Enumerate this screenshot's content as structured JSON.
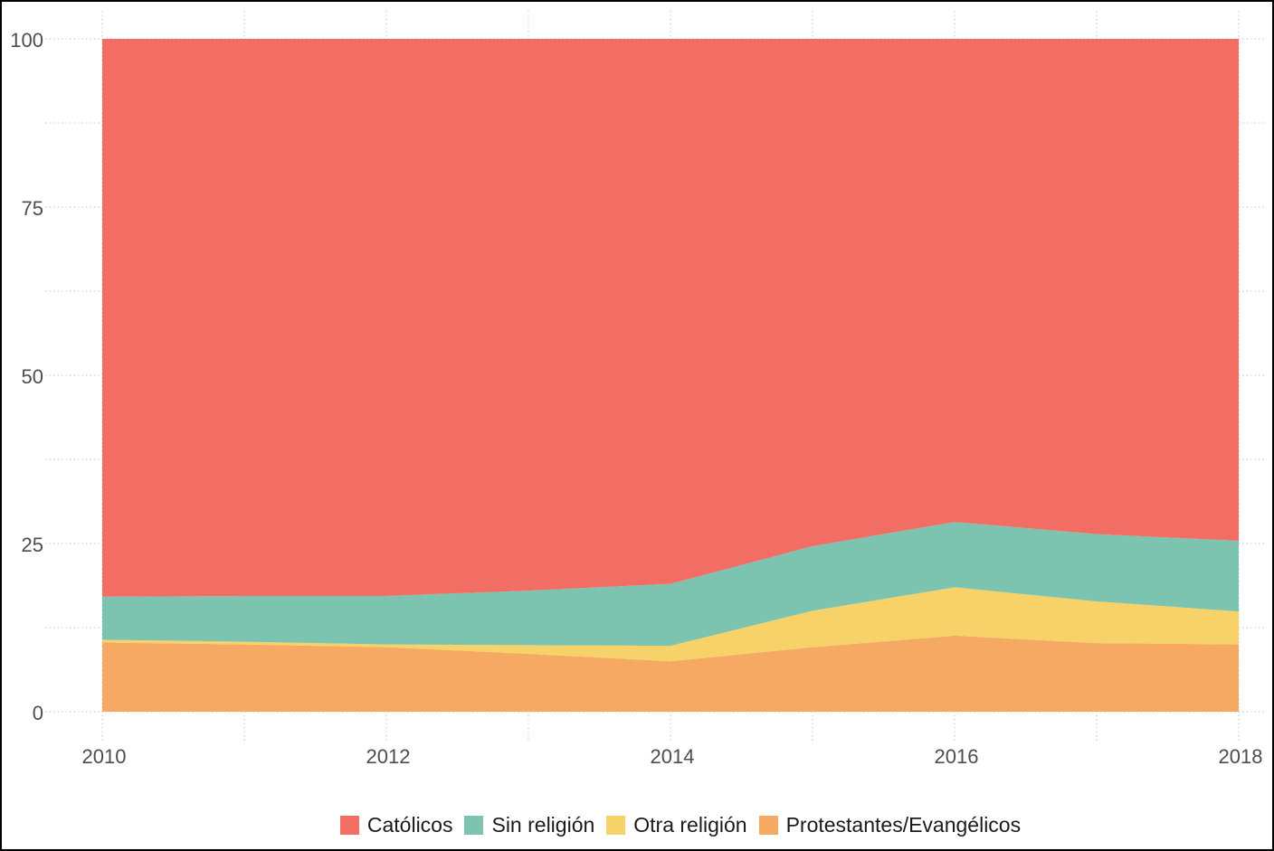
{
  "chart_data": {
    "type": "area",
    "stacked": true,
    "title": "",
    "xlabel": "",
    "ylabel": "",
    "x": [
      2010,
      2011,
      2012,
      2013,
      2014,
      2015,
      2016,
      2017,
      2018
    ],
    "series": [
      {
        "name": "Católicos",
        "color": "#F26E64",
        "values": [
          82.9,
          82.8,
          82.8,
          82.0,
          81.0,
          75.4,
          71.8,
          73.6,
          74.6
        ]
      },
      {
        "name": "Sin religión",
        "color": "#7CC4AF",
        "values": [
          6.4,
          6.8,
          7.2,
          8.1,
          9.2,
          9.6,
          9.7,
          10.0,
          10.5
        ]
      },
      {
        "name": "Otra religión",
        "color": "#F6D269",
        "values": [
          0.4,
          0.4,
          0.4,
          1.3,
          2.3,
          5.4,
          7.2,
          6.2,
          4.9
        ]
      },
      {
        "name": "Protestantes/Evangélicos",
        "color": "#F5A963",
        "values": [
          10.3,
          10.0,
          9.6,
          8.6,
          7.5,
          9.6,
          11.3,
          10.2,
          10.0
        ]
      }
    ],
    "ylim": [
      0,
      100
    ],
    "yticks": [
      0,
      25,
      50,
      75,
      100
    ],
    "ytick_labels": [
      "0",
      "25",
      "50",
      "75",
      "100"
    ],
    "yticks_minor": [
      12.5,
      37.5,
      62.5,
      87.5
    ],
    "xticks": [
      2010,
      2012,
      2014,
      2016,
      2018
    ],
    "xtick_labels": [
      "2010",
      "2012",
      "2014",
      "2016",
      "2018"
    ],
    "xticks_minor": [
      2011,
      2013,
      2015,
      2017
    ],
    "grid": "dotted",
    "grid_color": "#c6c6c6",
    "legend_position": "bottom",
    "axis_text_color": "#4d4d4d",
    "legend_text_color": "#1b1b1b"
  }
}
